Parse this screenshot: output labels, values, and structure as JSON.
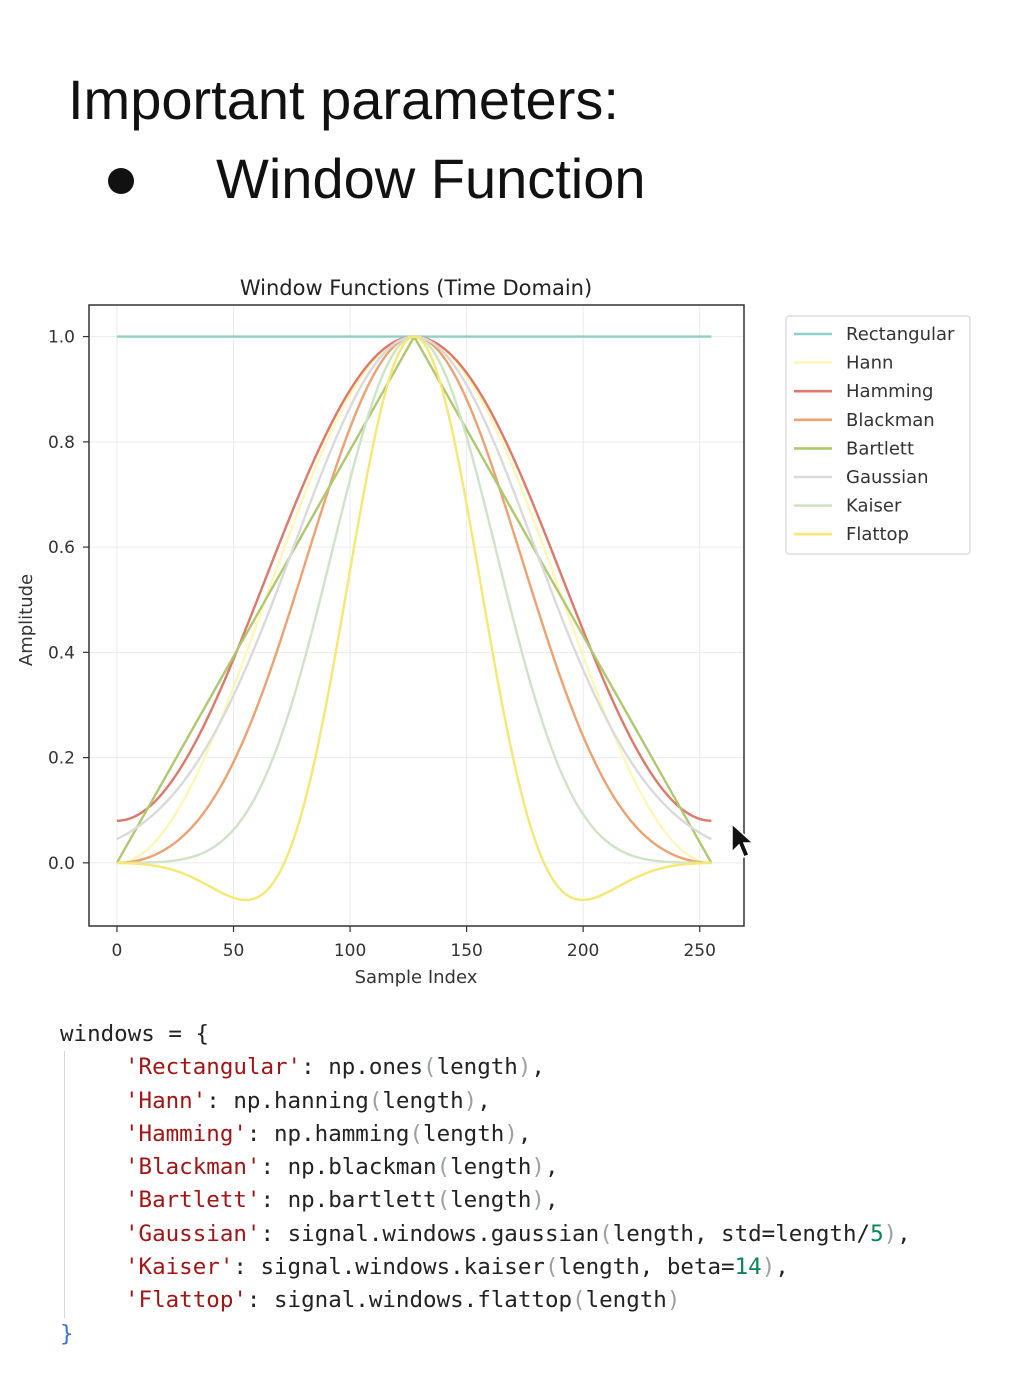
{
  "slide": {
    "title": "Important parameters:",
    "bullet": "Window Function"
  },
  "chart_data": {
    "type": "line",
    "title": "Window Functions (Time Domain)",
    "xlabel": "Sample Index",
    "ylabel": "Amplitude",
    "xlim": [
      -12,
      269
    ],
    "ylim": [
      -0.12,
      1.06
    ],
    "xticks": [
      0,
      50,
      100,
      150,
      200,
      250
    ],
    "yticks": [
      0.0,
      0.2,
      0.4,
      0.6,
      0.8,
      1.0
    ],
    "grid": true,
    "legend_position": "outside-right-top",
    "length": 256,
    "series": [
      {
        "name": "Rectangular",
        "color": "#8fd0c6",
        "kind": "rectangular"
      },
      {
        "name": "Hann",
        "color": "#fff7b8",
        "kind": "hann"
      },
      {
        "name": "Hamming",
        "color": "#e0786a",
        "kind": "hamming"
      },
      {
        "name": "Blackman",
        "color": "#eea272",
        "kind": "blackman"
      },
      {
        "name": "Bartlett",
        "color": "#aec96e",
        "kind": "bartlett"
      },
      {
        "name": "Gaussian",
        "color": "#dadada",
        "kind": "gaussian",
        "std": 51.2
      },
      {
        "name": "Kaiser",
        "color": "#cfe3c6",
        "kind": "kaiser",
        "beta": 14
      },
      {
        "name": "Flattop",
        "color": "#f6e873",
        "kind": "flattop"
      }
    ]
  },
  "code": {
    "open": "windows = {",
    "close": "}",
    "lines": [
      {
        "key": "'Rectangular'",
        "sep": ": ",
        "call": "np.ones",
        "args": "length",
        "args_num": "",
        "args_tail": "",
        "end": ","
      },
      {
        "key": "'Hann'",
        "sep": ": ",
        "call": "np.hanning",
        "args": "length",
        "args_num": "",
        "args_tail": "",
        "end": ","
      },
      {
        "key": "'Hamming'",
        "sep": ": ",
        "call": "np.hamming",
        "args": "length",
        "args_num": "",
        "args_tail": "",
        "end": ","
      },
      {
        "key": "'Blackman'",
        "sep": ": ",
        "call": "np.blackman",
        "args": "length",
        "args_num": "",
        "args_tail": "",
        "end": ","
      },
      {
        "key": "'Bartlett'",
        "sep": ": ",
        "call": "np.bartlett",
        "args": "length",
        "args_num": "",
        "args_tail": "",
        "end": ","
      },
      {
        "key": "'Gaussian'",
        "sep": ": ",
        "call": "signal.windows.gaussian",
        "args": "length, std=length/",
        "args_num": "5",
        "args_tail": "",
        "end": ","
      },
      {
        "key": "'Kaiser'",
        "sep": ": ",
        "call": "signal.windows.kaiser",
        "args": "length, beta=",
        "args_num": "14",
        "args_tail": "",
        "end": ","
      },
      {
        "key": "'Flattop'",
        "sep": ": ",
        "call": "signal.windows.flattop",
        "args": "length",
        "args_num": "",
        "args_tail": "",
        "end": ""
      }
    ]
  }
}
